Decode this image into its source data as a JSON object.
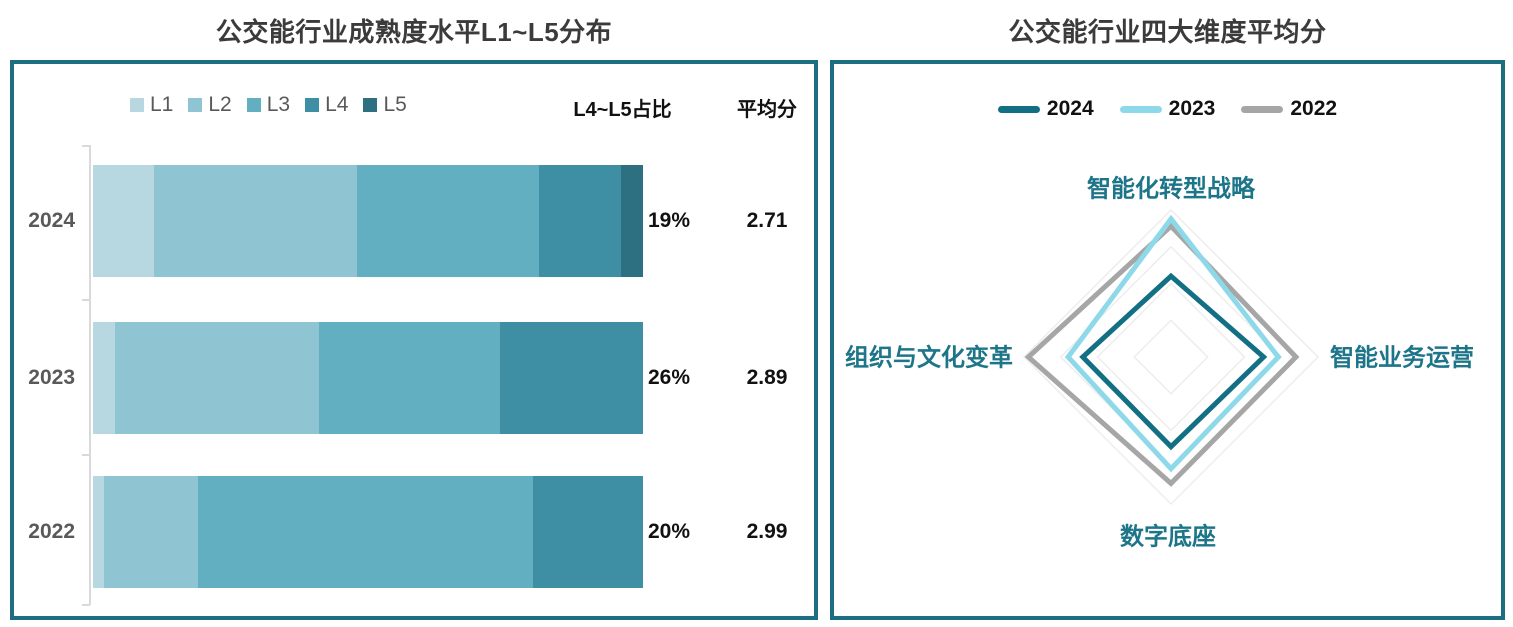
{
  "left_chart": {
    "title": "公交能行业成熟度水平L1~L5分布",
    "legend": [
      {
        "label": "L1",
        "color": "#b7d8e1"
      },
      {
        "label": "L2",
        "color": "#8fc4d2"
      },
      {
        "label": "L3",
        "color": "#62afc2"
      },
      {
        "label": "L4",
        "color": "#3e8fa4"
      },
      {
        "label": "L5",
        "color": "#2d7082"
      }
    ],
    "col_ratio_header": "L4~L5占比",
    "col_avg_header": "平均分",
    "rows": [
      {
        "year": "2024",
        "segments": [
          11,
          37,
          33,
          15,
          4
        ],
        "l4l5_ratio": "19%",
        "avg": "2.71"
      },
      {
        "year": "2023",
        "segments": [
          4,
          37,
          33,
          26,
          0
        ],
        "l4l5_ratio": "26%",
        "avg": "2.89"
      },
      {
        "year": "2022",
        "segments": [
          2,
          17,
          61,
          20,
          0
        ],
        "l4l5_ratio": "20%",
        "avg": "2.99"
      }
    ]
  },
  "right_chart": {
    "title": "公交能行业四大维度平均分",
    "legend": [
      {
        "label": "2024",
        "color": "#136f83"
      },
      {
        "label": "2023",
        "color": "#8ed9e9"
      },
      {
        "label": "2022",
        "color": "#a6a6a6"
      }
    ],
    "axes": [
      "智能化转型战略",
      "智能业务运营",
      "数字底座",
      "组织与文化变革"
    ],
    "grid_rings": [
      0.25,
      0.5,
      0.75,
      1.0
    ],
    "grid_color": "#ededed",
    "series": [
      {
        "name": "2024",
        "color": "#136f83",
        "values": [
          0.55,
          0.63,
          0.61,
          0.6
        ]
      },
      {
        "name": "2023",
        "color": "#8ed9e9",
        "values": [
          0.94,
          0.73,
          0.76,
          0.7
        ]
      },
      {
        "name": "2022",
        "color": "#a6a6a6",
        "values": [
          0.89,
          0.85,
          0.86,
          0.97
        ]
      }
    ]
  },
  "panel_border_color": "#1c6e80",
  "chart_data": [
    {
      "type": "bar",
      "subtype": "horizontal-100pct-stacked",
      "title": "公交能行业成熟度水平L1~L5分布",
      "categories": [
        "2024",
        "2023",
        "2022"
      ],
      "series": [
        {
          "name": "L1",
          "values": [
            11,
            4,
            2
          ]
        },
        {
          "name": "L2",
          "values": [
            37,
            37,
            17
          ]
        },
        {
          "name": "L3",
          "values": [
            33,
            33,
            61
          ]
        },
        {
          "name": "L4",
          "values": [
            15,
            26,
            20
          ]
        },
        {
          "name": "L5",
          "values": [
            4,
            0,
            0
          ]
        }
      ],
      "unit": "%",
      "xlim": [
        0,
        100
      ],
      "legend_position": "top",
      "grid": false,
      "extra_columns": [
        {
          "header": "L4~L5占比",
          "values": [
            "19%",
            "26%",
            "20%"
          ]
        },
        {
          "header": "平均分",
          "values": [
            "2.71",
            "2.89",
            "2.99"
          ]
        }
      ]
    },
    {
      "type": "radar",
      "title": "公交能行业四大维度平均分",
      "axes": [
        "智能化转型战略",
        "智能业务运营",
        "数字底座",
        "组织与文化变革"
      ],
      "series": [
        {
          "name": "2024",
          "values": [
            0.55,
            0.63,
            0.61,
            0.6
          ]
        },
        {
          "name": "2023",
          "values": [
            0.94,
            0.73,
            0.76,
            0.7
          ]
        },
        {
          "name": "2022",
          "values": [
            0.89,
            0.85,
            0.86,
            0.97
          ]
        }
      ],
      "value_scale": "fraction of outer grid ring (no numeric tick labels shown)",
      "legend_position": "top",
      "grid_rings": [
        0.25,
        0.5,
        0.75,
        1.0
      ]
    }
  ]
}
